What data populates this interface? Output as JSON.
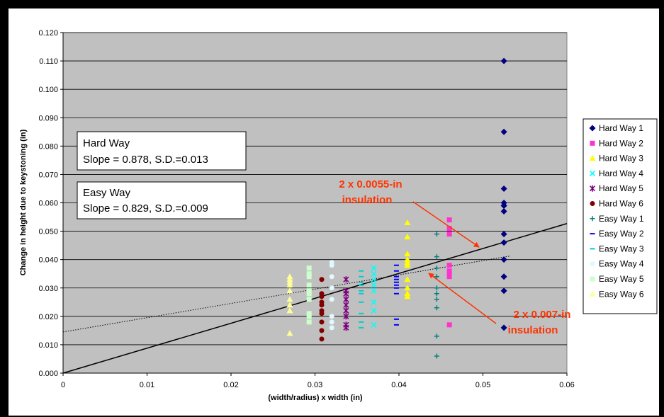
{
  "chart_data": {
    "type": "scatter",
    "xlabel": "(width/radius) x width (in)",
    "ylabel": "Change in height due to keystoning (in)",
    "xlim": [
      0,
      0.06
    ],
    "ylim": [
      0,
      0.12
    ],
    "x_ticks": [
      "0",
      "0.01",
      "0.02",
      "0.03",
      "0.04",
      "0.05",
      "0.06"
    ],
    "y_ticks": [
      "0.000",
      "0.010",
      "0.020",
      "0.030",
      "0.040",
      "0.050",
      "0.060",
      "0.070",
      "0.080",
      "0.090",
      "0.100",
      "0.110",
      "0.120"
    ],
    "grid": "horizontal",
    "plot_background": "#c0c0c0",
    "legend_position": "right",
    "series": [
      {
        "name": "Hard Way 1",
        "marker": "diamond",
        "color": "#000080",
        "x": [
          0.0525,
          0.0525,
          0.0525,
          0.0525,
          0.0525,
          0.0525,
          0.0525,
          0.0525,
          0.0525,
          0.0525,
          0.0525,
          0.0525,
          0.0525
        ],
        "y": [
          0.11,
          0.085,
          0.065,
          0.06,
          0.059,
          0.057,
          0.049,
          0.046,
          0.04,
          0.034,
          0.029,
          0.016,
          0.059
        ]
      },
      {
        "name": "Hard Way 2",
        "marker": "square",
        "color": "#ff33cc",
        "x": [
          0.046,
          0.046,
          0.046,
          0.046,
          0.046,
          0.046,
          0.046,
          0.046
        ],
        "y": [
          0.054,
          0.051,
          0.049,
          0.038,
          0.036,
          0.035,
          0.034,
          0.017
        ]
      },
      {
        "name": "Hard Way 3",
        "marker": "triangle",
        "color": "#ffff00",
        "x": [
          0.041,
          0.041,
          0.041,
          0.041,
          0.041,
          0.041,
          0.041,
          0.041,
          0.041,
          0.041
        ],
        "y": [
          0.053,
          0.048,
          0.042,
          0.04,
          0.039,
          0.038,
          0.033,
          0.03,
          0.028,
          0.027
        ]
      },
      {
        "name": "Hard Way 4",
        "marker": "x",
        "color": "#00ffff",
        "x": [
          0.037,
          0.037,
          0.037,
          0.037,
          0.037,
          0.037,
          0.037,
          0.037
        ],
        "y": [
          0.037,
          0.035,
          0.033,
          0.031,
          0.029,
          0.025,
          0.022,
          0.017
        ]
      },
      {
        "name": "Hard Way 5",
        "marker": "star",
        "color": "#800080",
        "x": [
          0.0337,
          0.0337,
          0.0337,
          0.0337,
          0.0337,
          0.0337,
          0.0337,
          0.0337,
          0.0337
        ],
        "y": [
          0.033,
          0.029,
          0.028,
          0.026,
          0.024,
          0.022,
          0.02,
          0.017,
          0.016
        ]
      },
      {
        "name": "Hard Way 6",
        "marker": "circle",
        "color": "#800000",
        "x": [
          0.0308,
          0.0308,
          0.0308,
          0.0308,
          0.0308,
          0.0308,
          0.0308,
          0.0308,
          0.0308,
          0.0308
        ],
        "y": [
          0.033,
          0.028,
          0.025,
          0.024,
          0.022,
          0.021,
          0.018,
          0.015,
          0.012,
          0.027
        ]
      },
      {
        "name": "Easy Way 1",
        "marker": "plus",
        "color": "#008080",
        "x": [
          0.0445,
          0.0445,
          0.0445,
          0.0445,
          0.0445,
          0.0445,
          0.0445,
          0.0445,
          0.0445,
          0.0445
        ],
        "y": [
          0.049,
          0.041,
          0.037,
          0.034,
          0.03,
          0.028,
          0.026,
          0.023,
          0.013,
          0.006
        ]
      },
      {
        "name": "Easy Way 2",
        "marker": "dash",
        "color": "#0000ff",
        "x": [
          0.0397,
          0.0397,
          0.0397,
          0.0397,
          0.0397,
          0.0397,
          0.0397,
          0.0397,
          0.0397,
          0.0397
        ],
        "y": [
          0.038,
          0.036,
          0.034,
          0.033,
          0.032,
          0.031,
          0.03,
          0.028,
          0.019,
          0.017
        ]
      },
      {
        "name": "Easy Way 3",
        "marker": "dash",
        "color": "#00cccc",
        "x": [
          0.0355,
          0.0355,
          0.0355,
          0.0355,
          0.0355,
          0.0355,
          0.0355,
          0.0355,
          0.0355,
          0.0355
        ],
        "y": [
          0.036,
          0.034,
          0.032,
          0.031,
          0.029,
          0.028,
          0.025,
          0.021,
          0.018,
          0.016
        ]
      },
      {
        "name": "Easy Way 4",
        "marker": "circle",
        "color": "#e0f8ff",
        "x": [
          0.032,
          0.032,
          0.032,
          0.032,
          0.032,
          0.032,
          0.032,
          0.032
        ],
        "y": [
          0.039,
          0.038,
          0.034,
          0.03,
          0.026,
          0.02,
          0.018,
          0.016
        ]
      },
      {
        "name": "Easy Way 5",
        "marker": "square",
        "color": "#ccffcc",
        "x": [
          0.0293,
          0.0293,
          0.0293,
          0.0293,
          0.0293,
          0.0293,
          0.0293,
          0.0293,
          0.0293,
          0.0293
        ],
        "y": [
          0.037,
          0.035,
          0.034,
          0.031,
          0.029,
          0.028,
          0.026,
          0.021,
          0.018,
          0.02
        ]
      },
      {
        "name": "Easy Way 6",
        "marker": "triangle",
        "color": "#ffff99",
        "x": [
          0.027,
          0.027,
          0.027,
          0.027,
          0.027,
          0.027,
          0.027,
          0.027,
          0.027
        ],
        "y": [
          0.034,
          0.033,
          0.032,
          0.031,
          0.029,
          0.026,
          0.024,
          0.022,
          0.014
        ]
      }
    ],
    "trendlines": [
      {
        "style": "solid",
        "color": "#000000",
        "points": [
          [
            0,
            0
          ],
          [
            0.06,
            0.0527
          ]
        ]
      },
      {
        "style": "dotted",
        "color": "#000000",
        "points": [
          [
            0,
            0.0145
          ],
          [
            0.0533,
            0.0413
          ]
        ]
      }
    ]
  },
  "annotations": {
    "hard_way_box": {
      "line1": "Hard Way",
      "line2": "Slope = 0.878, S.D.=0.013"
    },
    "easy_way_box": {
      "line1": "Easy Way",
      "line2": "Slope = 0.829, S.D.=0.009"
    },
    "label_0055": {
      "line1": "2 x 0.0055-in",
      "line2": "insulation",
      "color": "#ff3300"
    },
    "label_007": {
      "line1": "2 x 0.007-in",
      "line2": "insulation",
      "color": "#ff3300"
    }
  }
}
